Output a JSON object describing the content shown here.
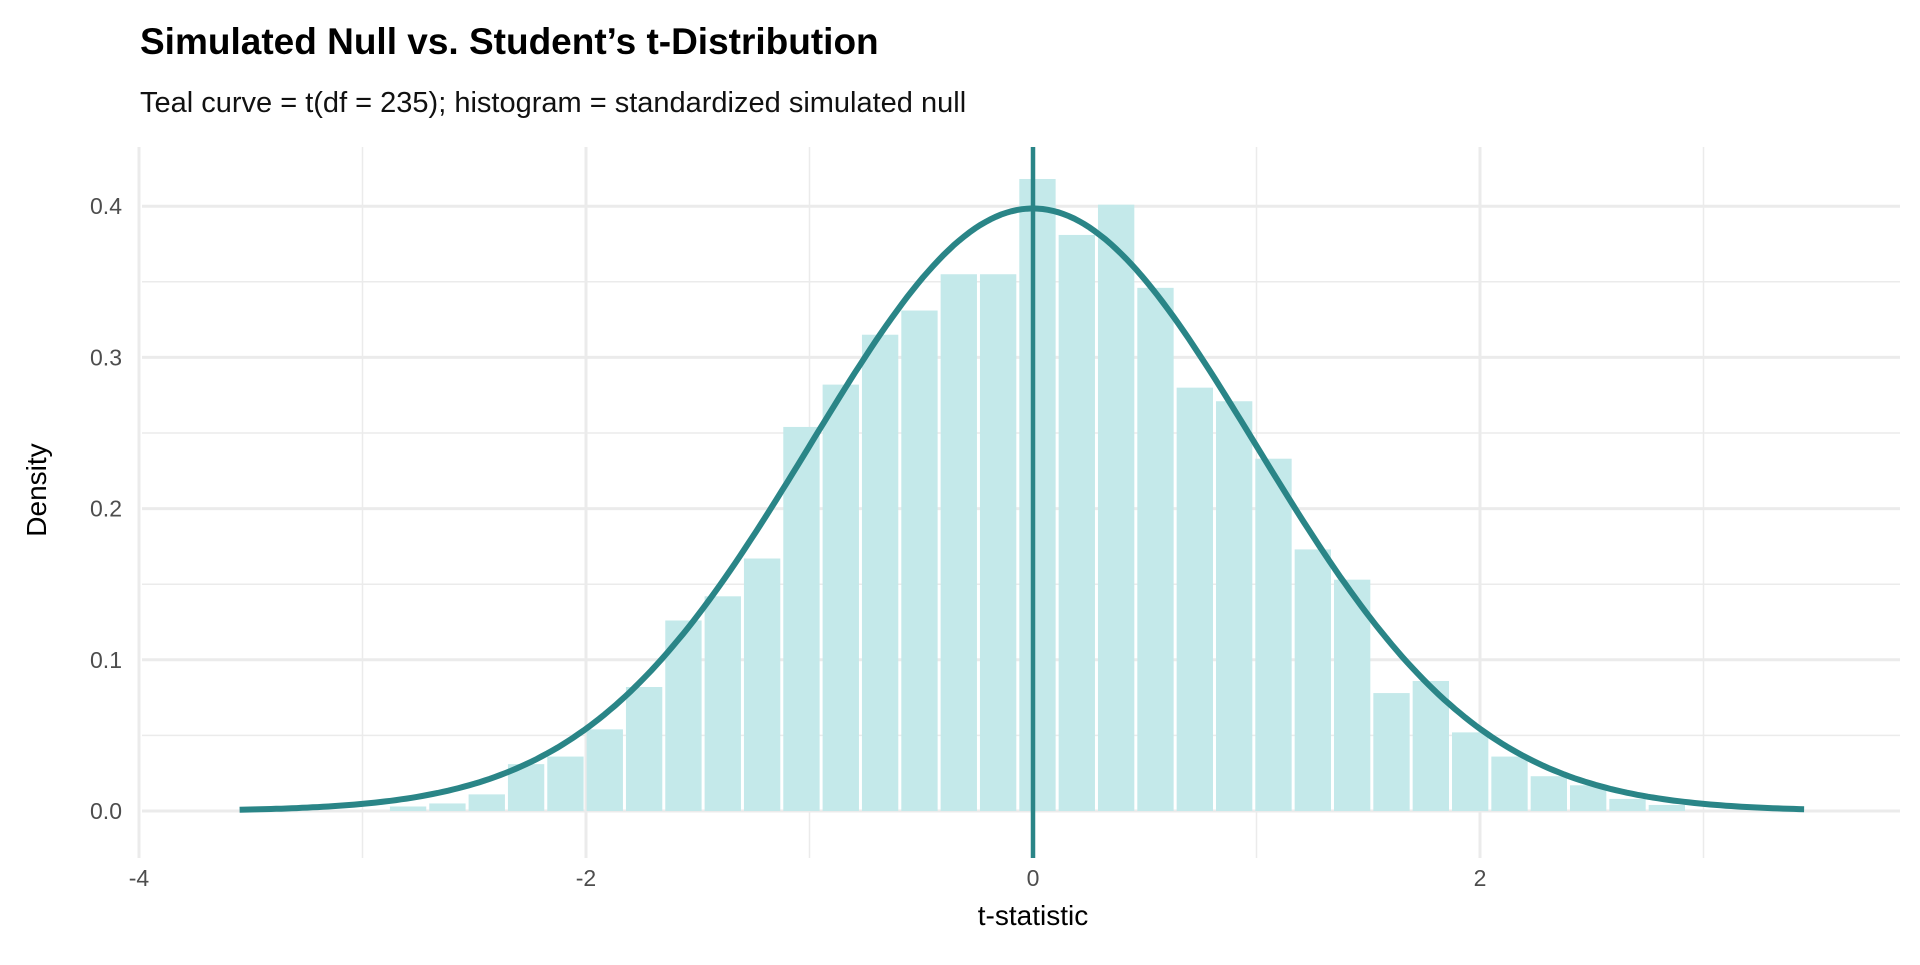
{
  "chart_data": {
    "type": "bar",
    "title": "Simulated Null vs. Student’s t-Distribution",
    "subtitle": "Teal curve = t(df = 235); histogram = standardized simulated null",
    "xlabel": "t-statistic",
    "ylabel": "Density",
    "xlim": [
      -4.2,
      3.85
    ],
    "ylim": [
      -0.015,
      0.44
    ],
    "x_ticks": [
      -4,
      -2,
      0,
      2
    ],
    "x_tick_labels": [
      "-4",
      "-2",
      "0",
      "2"
    ],
    "y_ticks": [
      0,
      0.1,
      0.2,
      0.3,
      0.4
    ],
    "y_tick_labels": [
      "0.0",
      "0.1",
      "0.2",
      "0.3",
      "0.4"
    ],
    "grid": true,
    "histogram": {
      "bin_width": 0.176,
      "bin_centers": [
        -2.796,
        -2.62,
        -2.444,
        -2.268,
        -2.092,
        -1.916,
        -1.74,
        -1.564,
        -1.388,
        -1.212,
        -1.036,
        -0.86,
        -0.684,
        -0.508,
        -0.332,
        -0.156,
        0.02,
        0.196,
        0.372,
        0.548,
        0.724,
        0.9,
        1.076,
        1.252,
        1.428,
        1.604,
        1.78,
        1.956,
        2.132,
        2.308,
        2.484,
        2.66,
        2.836
      ],
      "density": [
        0.003,
        0.005,
        0.011,
        0.031,
        0.036,
        0.054,
        0.082,
        0.126,
        0.142,
        0.167,
        0.254,
        0.282,
        0.315,
        0.331,
        0.355,
        0.355,
        0.418,
        0.381,
        0.401,
        0.346,
        0.28,
        0.271,
        0.233,
        0.173,
        0.153,
        0.078,
        0.086,
        0.052,
        0.036,
        0.023,
        0.017,
        0.008,
        0.004
      ]
    },
    "curve": {
      "name": "t(df = 235)",
      "df": 235,
      "x_range": [
        -3.55,
        3.45
      ]
    },
    "vline_x": 0,
    "colors": {
      "bars": "#c4e9ea",
      "curve": "#2a8587",
      "grid": "#ebebeb"
    }
  }
}
